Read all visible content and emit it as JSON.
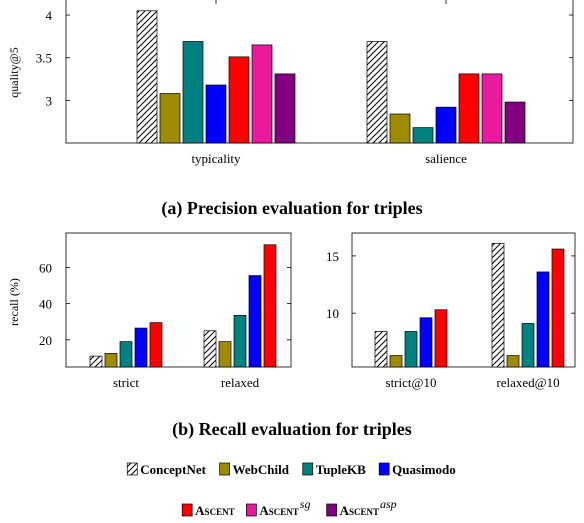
{
  "series_styles": [
    {
      "name": "ConceptNet",
      "color": "#ffffff",
      "hatch": true
    },
    {
      "name": "WebChild",
      "color": "#9e8c00",
      "hatch": false
    },
    {
      "name": "TupleKB",
      "color": "#008080",
      "hatch": false
    },
    {
      "name": "Quasimodo",
      "color": "#0000ff",
      "hatch": false
    },
    {
      "name": "Ascent",
      "color": "#ff0000",
      "hatch": false
    },
    {
      "name": "Ascent^sg",
      "color": "#ea1a9f",
      "hatch": false
    },
    {
      "name": "Ascent^asp",
      "color": "#800080",
      "hatch": false
    }
  ],
  "legend": {
    "row1": [
      {
        "label": "ConceptNet",
        "sup": ""
      },
      {
        "label": "WebChild",
        "sup": ""
      },
      {
        "label": "TupleKB",
        "sup": ""
      },
      {
        "label": "Quasimodo",
        "sup": ""
      }
    ],
    "row2": [
      {
        "label": "Ascent",
        "sup": ""
      },
      {
        "label": "Ascent",
        "sup": "sg"
      },
      {
        "label": "Ascent",
        "sup": "asp"
      }
    ]
  },
  "captions": {
    "a": "(a) Precision evaluation for triples",
    "b": "(b) Recall evaluation for triples"
  },
  "chart_data": [
    {
      "type": "bar",
      "title": "",
      "ylabel": "quality@5",
      "xlabel": "",
      "categories": [
        "typicality",
        "salience"
      ],
      "ylim": [
        2.5,
        4.2
      ],
      "yticks": [
        3,
        3.5,
        4
      ],
      "grid": false,
      "series": [
        {
          "name": "ConceptNet",
          "values": [
            4.05,
            3.69
          ]
        },
        {
          "name": "WebChild",
          "values": [
            3.08,
            2.84
          ]
        },
        {
          "name": "TupleKB",
          "values": [
            3.69,
            2.68
          ]
        },
        {
          "name": "Quasimodo",
          "values": [
            3.18,
            2.92
          ]
        },
        {
          "name": "Ascent",
          "values": [
            3.51,
            3.31
          ]
        },
        {
          "name": "Ascent^sg",
          "values": [
            3.65,
            3.31
          ]
        },
        {
          "name": "Ascent^asp",
          "values": [
            3.31,
            2.98
          ]
        }
      ]
    },
    {
      "type": "bar",
      "title": "",
      "ylabel": "recall (%)",
      "xlabel": "",
      "categories": [
        "strict",
        "relaxed"
      ],
      "ylim": [
        5,
        79
      ],
      "yticks": [
        20,
        40,
        60
      ],
      "grid": false,
      "series": [
        {
          "name": "ConceptNet",
          "values": [
            11,
            25
          ]
        },
        {
          "name": "WebChild",
          "values": [
            12.5,
            19
          ]
        },
        {
          "name": "TupleKB",
          "values": [
            19,
            33.5
          ]
        },
        {
          "name": "Quasimodo",
          "values": [
            26.5,
            55.5
          ]
        },
        {
          "name": "Ascent",
          "values": [
            29.5,
            72.5
          ]
        }
      ]
    },
    {
      "type": "bar",
      "title": "",
      "ylabel": "",
      "xlabel": "",
      "categories": [
        "strict@10",
        "relaxed@10"
      ],
      "ylim": [
        5.3,
        17
      ],
      "yticks": [
        10,
        15
      ],
      "grid": false,
      "series": [
        {
          "name": "ConceptNet",
          "values": [
            8.4,
            16.1
          ]
        },
        {
          "name": "WebChild",
          "values": [
            6.3,
            6.3
          ]
        },
        {
          "name": "TupleKB",
          "values": [
            8.4,
            9.1
          ]
        },
        {
          "name": "Quasimodo",
          "values": [
            9.6,
            13.6
          ]
        },
        {
          "name": "Ascent",
          "values": [
            10.3,
            15.6
          ]
        }
      ]
    }
  ]
}
